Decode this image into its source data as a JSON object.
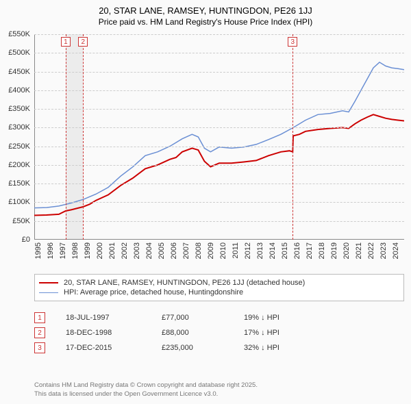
{
  "title_line1": "20, STAR LANE, RAMSEY, HUNTINGDON, PE26 1JJ",
  "title_line2": "Price paid vs. HM Land Registry's House Price Index (HPI)",
  "chart": {
    "type": "line",
    "background_color": "#fafafa",
    "grid_color": "#cccccc",
    "axis_color": "#888888",
    "y_min": 0,
    "y_max": 550000,
    "y_tick_step": 50000,
    "y_tick_format": "£{k}K",
    "y_ticks": [
      "£0",
      "£50K",
      "£100K",
      "£150K",
      "£200K",
      "£250K",
      "£300K",
      "£350K",
      "£400K",
      "£450K",
      "£500K",
      "£550K"
    ],
    "x_min": 1995,
    "x_max": 2025,
    "x_ticks": [
      1995,
      1996,
      1997,
      1998,
      1999,
      2000,
      2001,
      2002,
      2003,
      2004,
      2005,
      2006,
      2007,
      2008,
      2009,
      2010,
      2011,
      2012,
      2013,
      2014,
      2015,
      2016,
      2017,
      2018,
      2019,
      2020,
      2021,
      2022,
      2023,
      2024
    ],
    "band": {
      "start": 1997.55,
      "end": 1998.96,
      "color": "#dddddd",
      "opacity": 0.5
    },
    "markers": [
      {
        "label": "1",
        "x": 1997.55,
        "color": "#cc3333"
      },
      {
        "label": "2",
        "x": 1998.96,
        "color": "#cc3333"
      },
      {
        "label": "3",
        "x": 2015.96,
        "color": "#cc3333"
      }
    ],
    "series": [
      {
        "name": "price_paid",
        "label": "20, STAR LANE, RAMSEY, HUNTINGDON, PE26 1JJ (detached house)",
        "color": "#cc0000",
        "line_width": 2,
        "points": [
          [
            1995.0,
            65000
          ],
          [
            1996.0,
            66000
          ],
          [
            1997.0,
            68000
          ],
          [
            1997.55,
            77000
          ],
          [
            1998.0,
            80000
          ],
          [
            1998.96,
            88000
          ],
          [
            1999.5,
            95000
          ],
          [
            2000.0,
            105000
          ],
          [
            2001.0,
            120000
          ],
          [
            2002.0,
            145000
          ],
          [
            2003.0,
            165000
          ],
          [
            2004.0,
            190000
          ],
          [
            2005.0,
            200000
          ],
          [
            2006.0,
            215000
          ],
          [
            2006.5,
            220000
          ],
          [
            2007.0,
            235000
          ],
          [
            2007.8,
            245000
          ],
          [
            2008.3,
            240000
          ],
          [
            2008.8,
            210000
          ],
          [
            2009.3,
            195000
          ],
          [
            2010.0,
            205000
          ],
          [
            2011.0,
            205000
          ],
          [
            2012.0,
            208000
          ],
          [
            2013.0,
            212000
          ],
          [
            2014.0,
            225000
          ],
          [
            2015.0,
            235000
          ],
          [
            2015.7,
            238000
          ],
          [
            2015.96,
            235000
          ],
          [
            2016.0,
            278000
          ],
          [
            2016.5,
            282000
          ],
          [
            2017.0,
            290000
          ],
          [
            2018.0,
            295000
          ],
          [
            2019.0,
            298000
          ],
          [
            2020.0,
            300000
          ],
          [
            2020.5,
            298000
          ],
          [
            2021.0,
            310000
          ],
          [
            2021.5,
            320000
          ],
          [
            2022.0,
            328000
          ],
          [
            2022.5,
            335000
          ],
          [
            2023.0,
            330000
          ],
          [
            2023.5,
            325000
          ],
          [
            2024.0,
            322000
          ],
          [
            2024.5,
            320000
          ],
          [
            2025.0,
            318000
          ]
        ]
      },
      {
        "name": "hpi",
        "label": "HPI: Average price, detached house, Huntingdonshire",
        "color": "#6a8fd4",
        "line_width": 1.5,
        "points": [
          [
            1995.0,
            85000
          ],
          [
            1996.0,
            86000
          ],
          [
            1997.0,
            90000
          ],
          [
            1998.0,
            98000
          ],
          [
            1999.0,
            108000
          ],
          [
            2000.0,
            122000
          ],
          [
            2001.0,
            140000
          ],
          [
            2002.0,
            170000
          ],
          [
            2003.0,
            195000
          ],
          [
            2004.0,
            225000
          ],
          [
            2005.0,
            235000
          ],
          [
            2006.0,
            250000
          ],
          [
            2007.0,
            270000
          ],
          [
            2007.8,
            282000
          ],
          [
            2008.3,
            275000
          ],
          [
            2008.8,
            245000
          ],
          [
            2009.3,
            235000
          ],
          [
            2010.0,
            248000
          ],
          [
            2011.0,
            245000
          ],
          [
            2012.0,
            248000
          ],
          [
            2013.0,
            255000
          ],
          [
            2014.0,
            268000
          ],
          [
            2015.0,
            282000
          ],
          [
            2016.0,
            300000
          ],
          [
            2017.0,
            320000
          ],
          [
            2018.0,
            335000
          ],
          [
            2019.0,
            338000
          ],
          [
            2020.0,
            345000
          ],
          [
            2020.5,
            342000
          ],
          [
            2021.0,
            370000
          ],
          [
            2021.5,
            400000
          ],
          [
            2022.0,
            430000
          ],
          [
            2022.5,
            460000
          ],
          [
            2023.0,
            475000
          ],
          [
            2023.5,
            465000
          ],
          [
            2024.0,
            460000
          ],
          [
            2024.5,
            458000
          ],
          [
            2025.0,
            455000
          ]
        ]
      }
    ]
  },
  "legend": {
    "border_color": "#bbbbbb",
    "items": [
      {
        "color": "#cc0000",
        "width": 2,
        "label": "20, STAR LANE, RAMSEY, HUNTINGDON, PE26 1JJ (detached house)"
      },
      {
        "color": "#6a8fd4",
        "width": 1.5,
        "label": "HPI: Average price, detached house, Huntingdonshire"
      }
    ]
  },
  "sales": [
    {
      "marker": "1",
      "marker_color": "#cc3333",
      "date": "18-JUL-1997",
      "price": "£77,000",
      "hpi": "19% ↓ HPI"
    },
    {
      "marker": "2",
      "marker_color": "#cc3333",
      "date": "18-DEC-1998",
      "price": "£88,000",
      "hpi": "17% ↓ HPI"
    },
    {
      "marker": "3",
      "marker_color": "#cc3333",
      "date": "17-DEC-2015",
      "price": "£235,000",
      "hpi": "32% ↓ HPI"
    }
  ],
  "footer_line1": "Contains HM Land Registry data © Crown copyright and database right 2025.",
  "footer_line2": "This data is licensed under the Open Government Licence v3.0."
}
